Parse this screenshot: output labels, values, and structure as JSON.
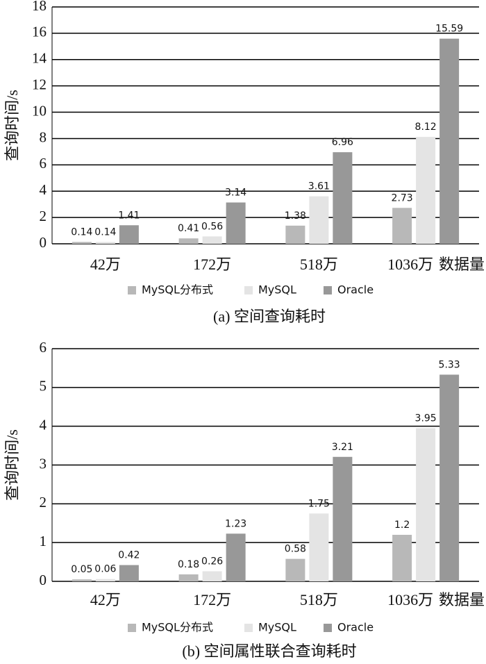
{
  "chart_data": [
    {
      "type": "bar",
      "caption": "(a) 空间查询耗时",
      "ylabel": "查询时间/s",
      "xlabel": "数据量",
      "categories": [
        "42万",
        "172万",
        "518万",
        "1036万"
      ],
      "series": [
        {
          "name": "MySQL分布式",
          "color": "#b8b8b8",
          "values": [
            0.14,
            0.41,
            1.38,
            2.73
          ]
        },
        {
          "name": "MySQL",
          "color": "#e4e4e4",
          "values": [
            0.14,
            0.56,
            3.61,
            8.12
          ]
        },
        {
          "name": "Oracle",
          "color": "#989898",
          "values": [
            1.41,
            3.14,
            6.96,
            15.59
          ]
        }
      ],
      "ylim": [
        0,
        18
      ],
      "yticks": [
        0,
        2,
        4,
        6,
        8,
        10,
        12,
        14,
        16,
        18
      ],
      "grid": true
    },
    {
      "type": "bar",
      "caption": "(b) 空间属性联合查询耗时",
      "ylabel": "查询时间/s",
      "xlabel": "数据量",
      "categories": [
        "42万",
        "172万",
        "518万",
        "1036万"
      ],
      "series": [
        {
          "name": "MySQL分布式",
          "color": "#b8b8b8",
          "values": [
            0.05,
            0.18,
            0.58,
            1.2
          ]
        },
        {
          "name": "MySQL",
          "color": "#e4e4e4",
          "values": [
            0.06,
            0.26,
            1.75,
            3.95
          ]
        },
        {
          "name": "Oracle",
          "color": "#989898",
          "values": [
            0.42,
            1.23,
            3.21,
            5.33
          ]
        }
      ],
      "ylim": [
        0,
        6
      ],
      "yticks": [
        0,
        1,
        2,
        3,
        4,
        5,
        6
      ],
      "grid": true
    }
  ]
}
